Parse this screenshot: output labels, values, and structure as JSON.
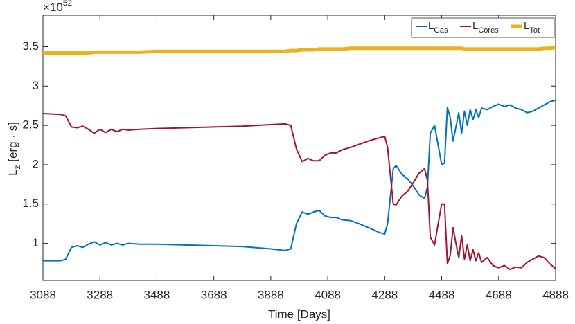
{
  "chart_data": {
    "type": "line",
    "axis_multiplier": {
      "base": "×10",
      "exponent": "52"
    },
    "ylabel": {
      "main": "L",
      "sub": "z",
      "rest": " [erg · s]"
    },
    "xlabel": "Time [Days]",
    "x": [
      3088,
      3150,
      3168,
      3188,
      3208,
      3228,
      3248,
      3268,
      3288,
      3308,
      3328,
      3348,
      3368,
      3388,
      3428,
      3488,
      3588,
      3688,
      3788,
      3888,
      3938,
      3958,
      3978,
      3998,
      4018,
      4038,
      4058,
      4078,
      4098,
      4118,
      4138,
      4168,
      4198,
      4238,
      4268,
      4288,
      4298,
      4318,
      4328,
      4348,
      4368,
      4388,
      4408,
      4428,
      4438,
      4448,
      4463,
      4478,
      4488,
      4498,
      4508,
      4518,
      4528,
      4538,
      4548,
      4558,
      4568,
      4578,
      4588,
      4598,
      4608,
      4618,
      4628,
      4648,
      4668,
      4688,
      4708,
      4728,
      4748,
      4768,
      4788,
      4808,
      4828,
      4848,
      4868,
      4888
    ],
    "series": [
      {
        "name": "L",
        "name_sub": "Gas",
        "color": "#0072bd",
        "width": 2,
        "values": [
          0.78,
          0.78,
          0.8,
          0.95,
          0.97,
          0.95,
          0.99,
          1.02,
          0.98,
          1.01,
          0.98,
          1.0,
          0.98,
          1.0,
          0.99,
          0.99,
          0.98,
          0.97,
          0.96,
          0.93,
          0.91,
          0.93,
          1.25,
          1.4,
          1.37,
          1.4,
          1.42,
          1.35,
          1.33,
          1.33,
          1.3,
          1.29,
          1.25,
          1.19,
          1.14,
          1.12,
          1.25,
          1.95,
          1.99,
          1.88,
          1.82,
          1.73,
          1.62,
          1.57,
          1.72,
          2.4,
          2.5,
          2.2,
          2.0,
          2.02,
          2.73,
          2.6,
          2.3,
          2.48,
          2.66,
          2.4,
          2.68,
          2.5,
          2.7,
          2.57,
          2.7,
          2.6,
          2.72,
          2.7,
          2.74,
          2.77,
          2.74,
          2.76,
          2.72,
          2.7,
          2.66,
          2.68,
          2.72,
          2.76,
          2.8,
          2.82
        ]
      },
      {
        "name": "L",
        "name_sub": "Cores",
        "color": "#a2142f",
        "width": 2,
        "values": [
          2.65,
          2.64,
          2.62,
          2.48,
          2.47,
          2.49,
          2.45,
          2.4,
          2.45,
          2.41,
          2.45,
          2.42,
          2.45,
          2.44,
          2.45,
          2.46,
          2.47,
          2.48,
          2.49,
          2.51,
          2.52,
          2.5,
          2.2,
          2.04,
          2.08,
          2.05,
          2.05,
          2.12,
          2.15,
          2.15,
          2.19,
          2.22,
          2.26,
          2.31,
          2.34,
          2.36,
          2.22,
          1.5,
          1.49,
          1.6,
          1.66,
          1.77,
          1.89,
          1.95,
          1.8,
          1.08,
          0.98,
          1.3,
          1.5,
          1.5,
          0.74,
          0.85,
          1.2,
          1.0,
          0.82,
          1.1,
          0.8,
          0.98,
          0.78,
          0.92,
          0.78,
          0.88,
          0.76,
          0.82,
          0.72,
          0.69,
          0.72,
          0.67,
          0.7,
          0.69,
          0.76,
          0.8,
          0.84,
          0.82,
          0.74,
          0.68
        ]
      },
      {
        "name": "L",
        "name_sub": "Tot",
        "color": "#edb120",
        "width": 5,
        "values": [
          3.42,
          3.42,
          3.42,
          3.42,
          3.42,
          3.42,
          3.42,
          3.43,
          3.43,
          3.43,
          3.43,
          3.43,
          3.43,
          3.43,
          3.43,
          3.44,
          3.44,
          3.44,
          3.44,
          3.44,
          3.44,
          3.45,
          3.45,
          3.46,
          3.46,
          3.46,
          3.47,
          3.47,
          3.47,
          3.47,
          3.47,
          3.48,
          3.48,
          3.48,
          3.48,
          3.48,
          3.48,
          3.48,
          3.48,
          3.48,
          3.48,
          3.48,
          3.48,
          3.48,
          3.48,
          3.48,
          3.48,
          3.48,
          3.48,
          3.48,
          3.48,
          3.48,
          3.48,
          3.48,
          3.48,
          3.48,
          3.47,
          3.47,
          3.47,
          3.47,
          3.47,
          3.47,
          3.47,
          3.47,
          3.47,
          3.47,
          3.47,
          3.47,
          3.47,
          3.47,
          3.47,
          3.47,
          3.47,
          3.48,
          3.48,
          3.49
        ]
      }
    ],
    "xlim": [
      3088,
      4888
    ],
    "xticks": [
      3088,
      3288,
      3488,
      3688,
      3888,
      4088,
      4288,
      4488,
      4688,
      4888
    ],
    "ylim": [
      0.53,
      3.9
    ],
    "yticks": [
      1,
      1.5,
      2,
      2.5,
      3,
      3.5
    ],
    "legend": "top-right"
  }
}
